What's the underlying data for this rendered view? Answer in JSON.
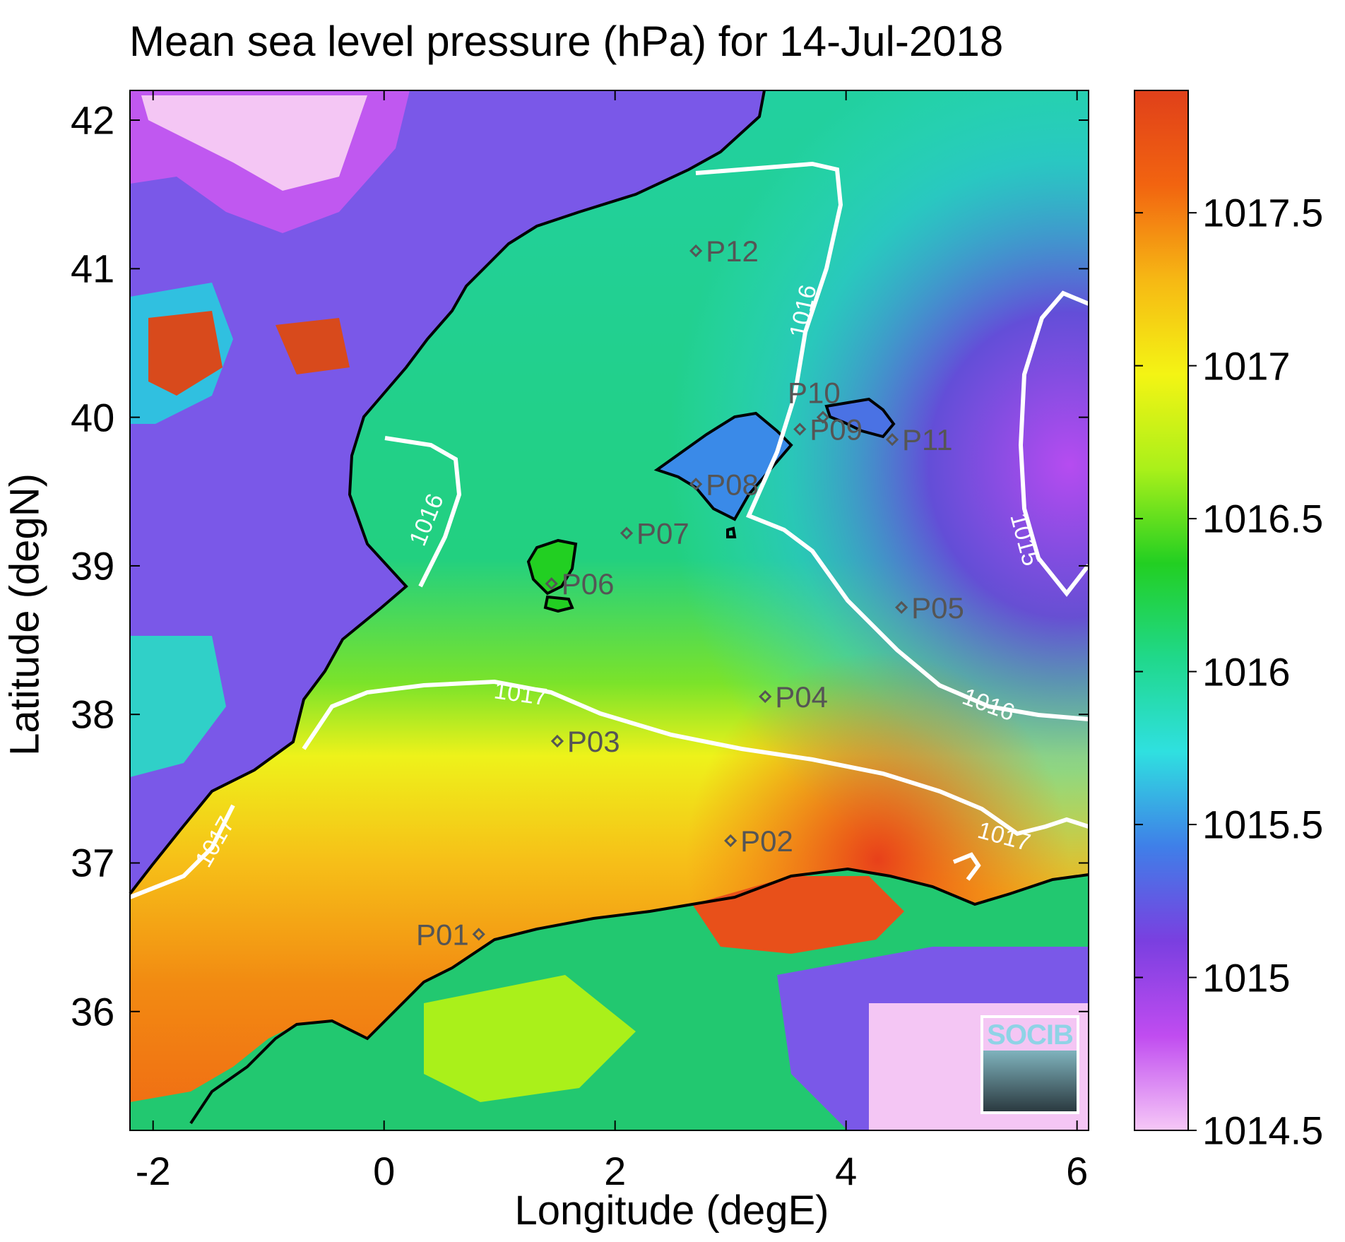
{
  "title": "Mean sea level pressure (hPa) for 14-Jul-2018",
  "x_axis": {
    "label": "Longitude (degE)",
    "range": [
      -2.2,
      6.1
    ],
    "ticks": [
      {
        "value": -2,
        "label": "-2"
      },
      {
        "value": 0,
        "label": "0"
      },
      {
        "value": 2,
        "label": "2"
      },
      {
        "value": 4,
        "label": "4"
      },
      {
        "value": 6,
        "label": "6"
      }
    ]
  },
  "y_axis": {
    "label": "Latitude (degN)",
    "range": [
      35.2,
      42.2
    ],
    "ticks": [
      {
        "value": 36,
        "label": "36"
      },
      {
        "value": 37,
        "label": "37"
      },
      {
        "value": 38,
        "label": "38"
      },
      {
        "value": 39,
        "label": "39"
      },
      {
        "value": 40,
        "label": "40"
      },
      {
        "value": 41,
        "label": "41"
      },
      {
        "value": 42,
        "label": "42"
      }
    ]
  },
  "colorbar": {
    "range": [
      1014.5,
      1017.9
    ],
    "ticks": [
      {
        "value": 1014.5,
        "label": "1014.5"
      },
      {
        "value": 1015,
        "label": "1015"
      },
      {
        "value": 1015.5,
        "label": "1015.5"
      },
      {
        "value": 1016,
        "label": "1016"
      },
      {
        "value": 1016.5,
        "label": "1016.5"
      },
      {
        "value": 1017,
        "label": "1017"
      },
      {
        "value": 1017.5,
        "label": "1017.5"
      }
    ],
    "colors": [
      "#f6c8f7",
      "#c04cf0",
      "#7a3fe0",
      "#3f7fe8",
      "#2fe0e0",
      "#20d88a",
      "#22cf22",
      "#aaf01a",
      "#f4f414",
      "#f6b814",
      "#f26410",
      "#e0401a"
    ]
  },
  "stations": [
    {
      "label": "P01",
      "lon": 0.82,
      "lat": 36.52
    },
    {
      "label": "P02",
      "lon": 3.0,
      "lat": 37.15
    },
    {
      "label": "P03",
      "lon": 1.5,
      "lat": 37.82
    },
    {
      "label": "P04",
      "lon": 3.3,
      "lat": 38.12
    },
    {
      "label": "P05",
      "lon": 4.48,
      "lat": 38.72
    },
    {
      "label": "P06",
      "lon": 1.45,
      "lat": 38.88
    },
    {
      "label": "P07",
      "lon": 2.1,
      "lat": 39.22
    },
    {
      "label": "P08",
      "lon": 2.7,
      "lat": 39.55
    },
    {
      "label": "P09",
      "lon": 3.6,
      "lat": 39.92
    },
    {
      "label": "P10",
      "lon": 3.8,
      "lat": 40.0
    },
    {
      "label": "P11",
      "lon": 4.4,
      "lat": 39.85
    },
    {
      "label": "P12",
      "lon": 2.7,
      "lat": 41.12
    }
  ],
  "contours": [
    {
      "level": "1015",
      "label": "1015"
    },
    {
      "level": "1016",
      "label": "1016"
    },
    {
      "level": "1017",
      "label": "1017"
    }
  ],
  "logo_text": "SOCIB"
}
